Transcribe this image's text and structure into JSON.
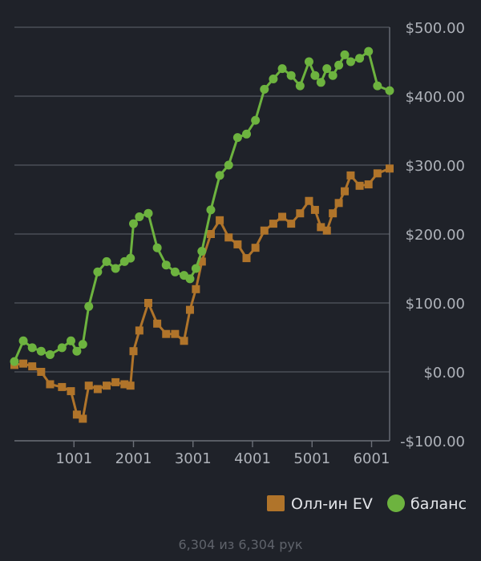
{
  "chart_data": {
    "type": "line",
    "title": "",
    "xlabel": "",
    "ylabel": "",
    "xlim": [
      1,
      6304
    ],
    "ylim": [
      -100,
      500
    ],
    "x_ticks": [
      1001,
      2001,
      3001,
      4001,
      5001,
      6001
    ],
    "x_tick_labels": [
      "1001",
      "2001",
      "3001",
      "4001",
      "5001",
      "6001"
    ],
    "y_ticks": [
      -100,
      0,
      100,
      200,
      300,
      400,
      500
    ],
    "y_tick_labels": [
      "-$100.00",
      "$0.00",
      "$100.00",
      "$200.00",
      "$300.00",
      "$400.00",
      "$500.00"
    ],
    "grid": "horizontal",
    "legend_position": "bottom-right",
    "series": [
      {
        "name": "Олл-ин EV",
        "color": "#b0742a",
        "marker": "square",
        "x": [
          1,
          150,
          300,
          450,
          600,
          800,
          950,
          1050,
          1150,
          1250,
          1400,
          1550,
          1700,
          1850,
          1950,
          2001,
          2100,
          2250,
          2400,
          2550,
          2700,
          2850,
          2950,
          3050,
          3150,
          3300,
          3450,
          3600,
          3750,
          3900,
          4050,
          4200,
          4350,
          4500,
          4650,
          4800,
          4950,
          5050,
          5150,
          5250,
          5350,
          5450,
          5550,
          5650,
          5800,
          5950,
          6100,
          6304
        ],
        "y": [
          10,
          12,
          8,
          0,
          -18,
          -22,
          -28,
          -62,
          -68,
          -20,
          -25,
          -20,
          -15,
          -18,
          -20,
          30,
          60,
          100,
          70,
          55,
          55,
          45,
          90,
          120,
          160,
          200,
          220,
          195,
          185,
          165,
          180,
          205,
          215,
          225,
          215,
          230,
          248,
          235,
          210,
          205,
          230,
          245,
          262,
          285,
          270,
          272,
          288,
          295
        ]
      },
      {
        "name": "баланс",
        "color": "#6db33f",
        "marker": "circle",
        "x": [
          1,
          150,
          300,
          450,
          600,
          800,
          950,
          1050,
          1150,
          1250,
          1400,
          1550,
          1700,
          1850,
          1950,
          2001,
          2100,
          2250,
          2400,
          2550,
          2700,
          2850,
          2950,
          3050,
          3150,
          3300,
          3450,
          3600,
          3750,
          3900,
          4050,
          4200,
          4350,
          4500,
          4650,
          4800,
          4950,
          5050,
          5150,
          5250,
          5350,
          5450,
          5550,
          5650,
          5800,
          5950,
          6100,
          6304
        ],
        "y": [
          15,
          45,
          35,
          30,
          25,
          35,
          45,
          30,
          40,
          95,
          145,
          160,
          150,
          160,
          165,
          215,
          225,
          230,
          180,
          155,
          145,
          140,
          135,
          150,
          175,
          235,
          285,
          300,
          340,
          345,
          365,
          410,
          425,
          440,
          430,
          415,
          450,
          430,
          420,
          440,
          430,
          445,
          460,
          450,
          455,
          465,
          415,
          408
        ]
      }
    ]
  },
  "footer": {
    "hands_text": "6,304 из 6,304 рук"
  }
}
